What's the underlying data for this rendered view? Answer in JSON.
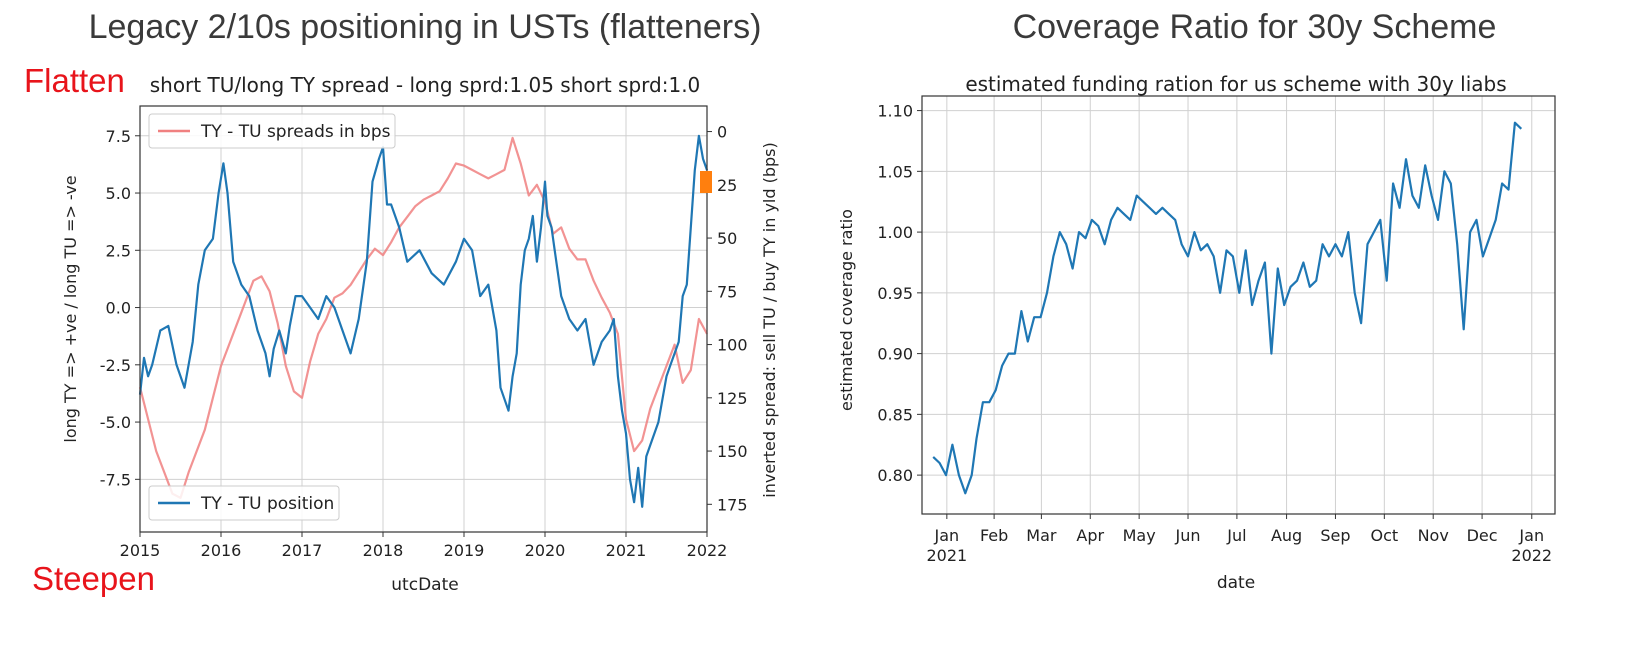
{
  "slide": {
    "left_title": "Legacy 2/10s positioning in USTs (flatteners)",
    "right_title": "Coverage Ratio for 30y Scheme",
    "flatten_label": "Flatten",
    "steepen_label": "Steepen"
  },
  "chart_data": [
    {
      "type": "line",
      "title": "short TU/long TY spread - long sprd:1.05 short sprd:1.0",
      "xlabel": "utcDate",
      "ylabel": "long TY => +ve / long TU => -ve",
      "y2label": "inverted spread: sell TU / buy TY in yld (bps)",
      "x_ticks": [
        "2015",
        "2016",
        "2017",
        "2018",
        "2019",
        "2020",
        "2021",
        "2022"
      ],
      "xlim": [
        2015,
        2022
      ],
      "y_ticks": [
        "7.5",
        "5.0",
        "2.5",
        "0.0",
        "-2.5",
        "-5.0",
        "-7.5"
      ],
      "ylim": [
        -9.8,
        8.8
      ],
      "y2_ticks": [
        "0",
        "25",
        "50",
        "75",
        "100",
        "125",
        "150",
        "175"
      ],
      "y2lim": [
        188,
        -12
      ],
      "y2_inverted": true,
      "grid": true,
      "legend": [
        {
          "name": "TY - TU spreads in bps",
          "color": "#f08080",
          "placement": "top-left"
        },
        {
          "name": "TY - TU position",
          "color": "#1f77b4",
          "placement": "bottom-left"
        }
      ],
      "series": [
        {
          "name": "TY - TU position",
          "axis": "left",
          "color": "#1f77b4",
          "x": [
            2015.0,
            2015.05,
            2015.1,
            2015.15,
            2015.25,
            2015.35,
            2015.45,
            2015.55,
            2015.65,
            2015.72,
            2015.8,
            2015.9,
            2015.97,
            2016.03,
            2016.08,
            2016.15,
            2016.25,
            2016.35,
            2016.45,
            2016.55,
            2016.6,
            2016.65,
            2016.72,
            2016.8,
            2016.85,
            2016.92,
            2017.0,
            2017.1,
            2017.2,
            2017.3,
            2017.4,
            2017.5,
            2017.6,
            2017.7,
            2017.8,
            2017.87,
            2017.95,
            2018.0,
            2018.05,
            2018.1,
            2018.2,
            2018.3,
            2018.45,
            2018.6,
            2018.75,
            2018.9,
            2019.0,
            2019.1,
            2019.2,
            2019.3,
            2019.4,
            2019.45,
            2019.5,
            2019.55,
            2019.6,
            2019.65,
            2019.7,
            2019.75,
            2019.8,
            2019.85,
            2019.9,
            2019.95,
            2020.0,
            2020.03,
            2020.08,
            2020.12,
            2020.2,
            2020.3,
            2020.4,
            2020.5,
            2020.6,
            2020.7,
            2020.8,
            2020.85,
            2020.9,
            2020.95,
            2021.0,
            2021.05,
            2021.1,
            2021.15,
            2021.2,
            2021.25,
            2021.3,
            2021.4,
            2021.5,
            2021.55,
            2021.6,
            2021.65,
            2021.7,
            2021.75,
            2021.8,
            2021.85,
            2021.9,
            2021.95,
            2022.0
          ],
          "y": [
            -3.8,
            -2.2,
            -3.0,
            -2.5,
            -1.0,
            -0.8,
            -2.5,
            -3.5,
            -1.5,
            1.0,
            2.5,
            3.0,
            5.0,
            6.3,
            5.0,
            2.0,
            1.0,
            0.5,
            -1.0,
            -2.0,
            -3.0,
            -1.8,
            -1.0,
            -2.0,
            -0.8,
            0.5,
            0.5,
            0.0,
            -0.5,
            0.5,
            0.0,
            -1.0,
            -2.0,
            -0.5,
            2.0,
            5.5,
            6.5,
            7.0,
            4.5,
            4.5,
            3.5,
            2.0,
            2.5,
            1.5,
            1.0,
            2.0,
            3.0,
            2.5,
            0.5,
            1.0,
            -1.0,
            -3.5,
            -4.0,
            -4.5,
            -3.0,
            -2.0,
            1.0,
            2.5,
            3.0,
            4.0,
            2.0,
            3.5,
            5.5,
            4.0,
            3.5,
            2.5,
            0.5,
            -0.5,
            -1.0,
            -0.5,
            -2.5,
            -1.5,
            -1.0,
            -0.5,
            -3.0,
            -4.5,
            -5.5,
            -7.5,
            -8.5,
            -7.0,
            -8.7,
            -6.5,
            -6.0,
            -5.0,
            -3.0,
            -2.5,
            -2.0,
            -1.5,
            0.5,
            1.0,
            3.5,
            6.0,
            7.5,
            6.5,
            6.0
          ]
        },
        {
          "name": "TY - TU spreads in bps",
          "axis": "right",
          "color": "#f08080",
          "x": [
            2015.0,
            2015.1,
            2015.2,
            2015.3,
            2015.4,
            2015.5,
            2015.6,
            2015.7,
            2015.8,
            2015.9,
            2016.0,
            2016.1,
            2016.2,
            2016.3,
            2016.4,
            2016.5,
            2016.6,
            2016.7,
            2016.8,
            2016.9,
            2017.0,
            2017.1,
            2017.2,
            2017.3,
            2017.4,
            2017.5,
            2017.6,
            2017.7,
            2017.8,
            2017.9,
            2018.0,
            2018.1,
            2018.2,
            2018.3,
            2018.4,
            2018.5,
            2018.6,
            2018.7,
            2018.8,
            2018.9,
            2019.0,
            2019.1,
            2019.2,
            2019.3,
            2019.4,
            2019.5,
            2019.6,
            2019.7,
            2019.8,
            2019.9,
            2020.0,
            2020.1,
            2020.2,
            2020.3,
            2020.4,
            2020.5,
            2020.6,
            2020.7,
            2020.8,
            2020.9,
            2021.0,
            2021.1,
            2021.2,
            2021.3,
            2021.4,
            2021.5,
            2021.6,
            2021.7,
            2021.8,
            2021.9,
            2022.0
          ],
          "y": [
            120,
            135,
            150,
            160,
            170,
            172,
            160,
            150,
            140,
            125,
            110,
            100,
            90,
            80,
            70,
            68,
            75,
            90,
            110,
            122,
            125,
            108,
            95,
            88,
            78,
            76,
            72,
            66,
            60,
            55,
            58,
            52,
            45,
            40,
            35,
            32,
            30,
            28,
            22,
            15,
            16,
            18,
            20,
            22,
            20,
            18,
            3,
            15,
            30,
            25,
            33,
            48,
            45,
            55,
            60,
            60,
            70,
            78,
            85,
            95,
            135,
            150,
            145,
            130,
            120,
            110,
            100,
            118,
            112,
            88,
            95
          ]
        }
      ]
    },
    {
      "type": "line",
      "title": "estimated funding ration for us scheme with 30y liabs",
      "xlabel": "date",
      "ylabel": "estimated coverage ratio",
      "x_ticks": [
        "Jan\n2021",
        "Feb",
        "Mar",
        "Apr",
        "May",
        "Jun",
        "Jul",
        "Aug",
        "Sep",
        "Oct",
        "Nov",
        "Dec",
        "Jan\n2022"
      ],
      "xlim": [
        "2021-01-01",
        "2022-01-31"
      ],
      "y_ticks": [
        "0.80",
        "0.85",
        "0.90",
        "0.95",
        "1.00",
        "1.05",
        "1.10"
      ],
      "ylim": [
        0.768,
        1.112
      ],
      "grid": true,
      "series": [
        {
          "name": "",
          "color": "#1f77b4",
          "x": [
            "2021-01-08",
            "2021-01-12",
            "2021-01-16",
            "2021-01-20",
            "2021-01-24",
            "2021-01-28",
            "2021-02-01",
            "2021-02-04",
            "2021-02-08",
            "2021-02-12",
            "2021-02-16",
            "2021-02-20",
            "2021-02-24",
            "2021-02-28",
            "2021-03-04",
            "2021-03-08",
            "2021-03-12",
            "2021-03-16",
            "2021-03-20",
            "2021-03-24",
            "2021-03-28",
            "2021-04-01",
            "2021-04-05",
            "2021-04-09",
            "2021-04-13",
            "2021-04-17",
            "2021-04-21",
            "2021-04-25",
            "2021-04-29",
            "2021-05-03",
            "2021-05-07",
            "2021-05-11",
            "2021-05-15",
            "2021-05-19",
            "2021-05-23",
            "2021-05-27",
            "2021-05-31",
            "2021-06-04",
            "2021-06-08",
            "2021-06-12",
            "2021-06-16",
            "2021-06-20",
            "2021-06-24",
            "2021-06-28",
            "2021-07-02",
            "2021-07-06",
            "2021-07-10",
            "2021-07-14",
            "2021-07-18",
            "2021-07-22",
            "2021-07-26",
            "2021-07-30",
            "2021-08-03",
            "2021-08-07",
            "2021-08-11",
            "2021-08-15",
            "2021-08-19",
            "2021-08-23",
            "2021-08-27",
            "2021-08-31",
            "2021-09-04",
            "2021-09-08",
            "2021-09-12",
            "2021-09-16",
            "2021-09-20",
            "2021-09-24",
            "2021-09-28",
            "2021-10-02",
            "2021-10-06",
            "2021-10-10",
            "2021-10-14",
            "2021-10-18",
            "2021-10-22",
            "2021-10-26",
            "2021-10-30",
            "2021-11-03",
            "2021-11-07",
            "2021-11-11",
            "2021-11-15",
            "2021-11-19",
            "2021-11-23",
            "2021-11-27",
            "2021-12-01",
            "2021-12-05",
            "2021-12-09",
            "2021-12-13",
            "2021-12-17",
            "2021-12-21",
            "2021-12-25",
            "2021-12-29",
            "2022-01-02",
            "2022-01-06",
            "2022-01-10"
          ],
          "y": [
            0.815,
            0.81,
            0.8,
            0.825,
            0.8,
            0.785,
            0.8,
            0.83,
            0.86,
            0.86,
            0.87,
            0.89,
            0.9,
            0.9,
            0.935,
            0.91,
            0.93,
            0.93,
            0.95,
            0.98,
            1.0,
            0.99,
            0.97,
            1.0,
            0.995,
            1.01,
            1.005,
            0.99,
            1.01,
            1.02,
            1.015,
            1.01,
            1.03,
            1.025,
            1.02,
            1.015,
            1.02,
            1.015,
            1.01,
            0.99,
            0.98,
            1.0,
            0.985,
            0.99,
            0.98,
            0.95,
            0.985,
            0.98,
            0.95,
            0.985,
            0.94,
            0.96,
            0.975,
            0.9,
            0.97,
            0.94,
            0.955,
            0.96,
            0.975,
            0.955,
            0.96,
            0.99,
            0.98,
            0.99,
            0.98,
            1.0,
            0.95,
            0.925,
            0.99,
            1.0,
            1.01,
            0.96,
            1.04,
            1.02,
            1.06,
            1.03,
            1.02,
            1.055,
            1.03,
            1.01,
            1.05,
            1.04,
            0.99,
            0.92,
            1.0,
            1.01,
            0.98,
            0.995,
            1.01,
            1.04,
            1.035,
            1.09,
            1.085
          ]
        }
      ]
    }
  ]
}
